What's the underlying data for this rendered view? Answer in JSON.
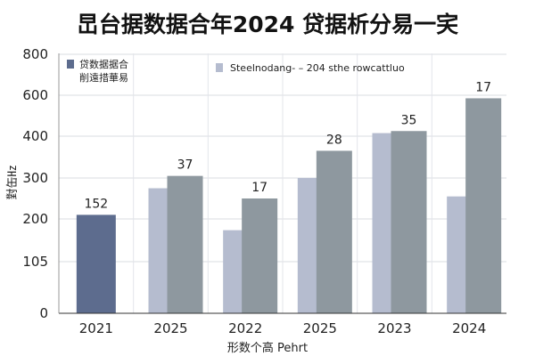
{
  "chart_data": {
    "type": "bar",
    "title": "旵台据数据合年2024 贷据析分易一宎",
    "xlabel": "形数个高 Pehrt",
    "ylabel": "對缶㎐",
    "ylim": [
      0,
      800
    ],
    "yticks": [
      {
        "value": 0,
        "label": "0"
      },
      {
        "value": 105,
        "label": "105"
      },
      {
        "value": 200,
        "label": "200"
      },
      {
        "value": 300,
        "label": "300"
      },
      {
        "value": 400,
        "label": "400"
      },
      {
        "value": 600,
        "label": "600"
      },
      {
        "value": 800,
        "label": "800"
      }
    ],
    "grid": true,
    "legend_placement": "top",
    "categories": [
      "2021",
      "2025",
      "2022",
      "2025",
      "2023",
      "2024"
    ],
    "series": [
      {
        "name": "贷数据据合 削遠措華易",
        "color": "#5d6c8e",
        "values": [
          210,
          null,
          null,
          null,
          null,
          null
        ]
      },
      {
        "name": "Steelnodang- – 204 sthe rowcattluo",
        "color": "#b5bccf",
        "values": [
          null,
          275,
          175,
          300,
          415,
          255
        ]
      },
      {
        "name": "",
        "color": "#8e989f",
        "values": [
          null,
          305,
          250,
          365,
          425,
          585
        ]
      }
    ],
    "data_labels": [
      "152",
      "37",
      "17",
      "28",
      "35",
      "17"
    ]
  }
}
